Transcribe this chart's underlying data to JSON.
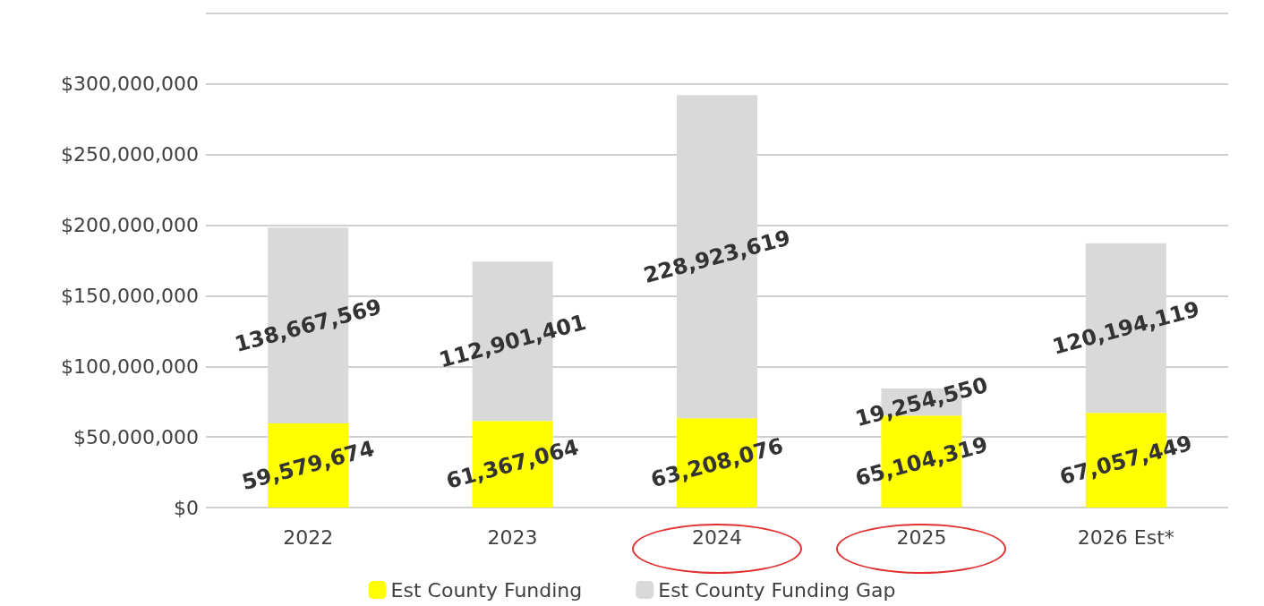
{
  "chart_data": {
    "type": "bar",
    "stacked": true,
    "categories": [
      "2022",
      "2023",
      "2024",
      "2025",
      "2026 Est*"
    ],
    "series": [
      {
        "name": "Est County Funding",
        "color": "#ffff00",
        "values": [
          59579674,
          61367064,
          63208076,
          65104319,
          67057449
        ],
        "value_labels": [
          "59,579,674",
          "61,367,064",
          "63,208,076",
          "65,104,319",
          "67,057,449"
        ]
      },
      {
        "name": "Est County Funding Gap",
        "color": "#d9d9d9",
        "values": [
          138667569,
          112901401,
          228923619,
          19254550,
          120194119
        ],
        "value_labels": [
          "138,667,569",
          "112,901,401",
          "228,923,619",
          "19,254,550",
          "120,194,119"
        ]
      }
    ],
    "ylim": [
      0,
      350000000
    ],
    "yticks": [
      {
        "value": 0,
        "label": "$0"
      },
      {
        "value": 50000000,
        "label": "$50,000,000"
      },
      {
        "value": 100000000,
        "label": "$100,000,000"
      },
      {
        "value": 150000000,
        "label": "$150,000,000"
      },
      {
        "value": 200000000,
        "label": "$200,000,000"
      },
      {
        "value": 250000000,
        "label": "$250,000,000"
      },
      {
        "value": 300000000,
        "label": "$300,000,000"
      },
      {
        "value": 350000000,
        "label": null
      }
    ],
    "grid": "y",
    "legend": "bottom"
  }
}
